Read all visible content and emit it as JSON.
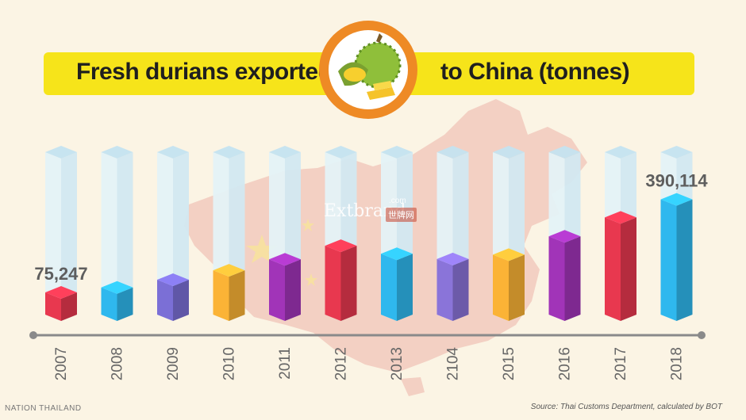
{
  "title": {
    "left": "Fresh durians exported",
    "right": "to China (tonnes)"
  },
  "source": "Source: Thai Customs Department, calculated by BOT",
  "watermarks": {
    "nation": "NATION THAILAND",
    "extbrand": "Extbrand",
    "extbrand_com": ".com",
    "extbrand_cn": "世牌网"
  },
  "icons": [
    "durian-icon",
    "china-map-icon"
  ],
  "colors": {
    "background": "#fbf4e4",
    "title_bar": "#f6e41a",
    "logo_ring": "#ee8a25",
    "map": "#f1c9bd"
  },
  "chart_data": {
    "type": "bar",
    "title": "Fresh durians exported to China (tonnes)",
    "categories": [
      "2007",
      "2008",
      "2009",
      "2010",
      "2011",
      "2012",
      "2013",
      "2104",
      "2015",
      "2016",
      "2017",
      "2018"
    ],
    "values": [
      75247,
      92000,
      118000,
      150000,
      187000,
      233000,
      206000,
      188000,
      203000,
      265000,
      329000,
      390114
    ],
    "data_labels": [
      "75,247",
      "",
      "",
      "",
      "",
      "",
      "",
      "",
      "",
      "",
      "",
      "390,114"
    ],
    "bar_colors": [
      "#e8384f",
      "#2fb8ee",
      "#7b6fd6",
      "#fbb336",
      "#a134b8",
      "#e8384f",
      "#2fb8ee",
      "#8a74d9",
      "#fbb336",
      "#a134b8",
      "#e8384f",
      "#2fb8ee"
    ],
    "ylim": [
      0,
      550000
    ],
    "grid": false,
    "legend": "none"
  }
}
